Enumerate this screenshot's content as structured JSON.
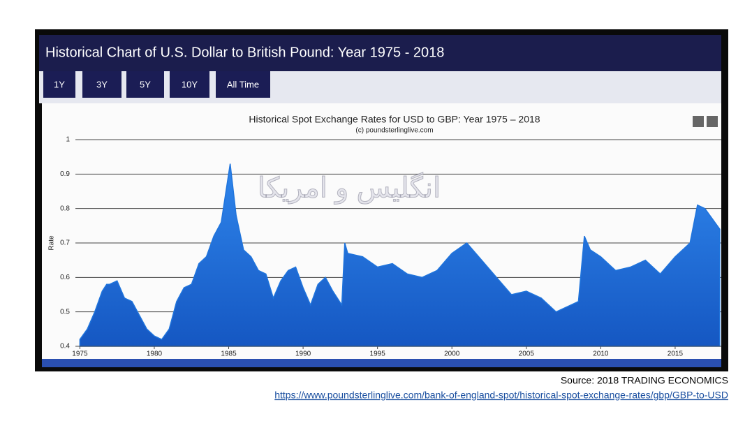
{
  "header": {
    "title": "Historical Chart of U.S. Dollar to British Pound: Year 1975 - 2018"
  },
  "buttons": [
    "1Y",
    "3Y",
    "5Y",
    "10Y",
    "All Time"
  ],
  "chart_data": {
    "type": "area",
    "title": "Historical Spot Exchange Rates for USD to GBP: Year 1975 – 2018",
    "subtitle": "(c) poundsterlinglive.com",
    "ylabel": "Rate",
    "annotation": "انگلیس و امریکا",
    "color": "#1f74dc",
    "grid": true,
    "xlim": [
      1974.7,
      2018.1
    ],
    "xticks": [
      1975,
      1980,
      1985,
      1990,
      1995,
      2000,
      2005,
      2010,
      2015
    ],
    "ylim": [
      0.4,
      1
    ],
    "yticks": [
      0.4,
      0.5,
      0.6,
      0.7,
      0.8,
      0.9,
      1
    ],
    "x": [
      1975.0,
      1975.5,
      1976.0,
      1976.5,
      1976.8,
      1977.0,
      1977.5,
      1978.0,
      1978.5,
      1979.0,
      1979.5,
      1980.0,
      1980.5,
      1981.0,
      1981.5,
      1982.0,
      1982.5,
      1983.0,
      1983.5,
      1984.0,
      1984.5,
      1985.1,
      1985.5,
      1986.0,
      1986.5,
      1987.0,
      1987.5,
      1988.0,
      1988.5,
      1989.0,
      1989.5,
      1990.0,
      1990.5,
      1991.0,
      1991.5,
      1992.0,
      1992.6,
      1992.8,
      1993.0,
      1994.0,
      1995.0,
      1996.0,
      1997.0,
      1998.0,
      1999.0,
      2000.0,
      2001.0,
      2002.0,
      2003.0,
      2004.0,
      2005.0,
      2006.0,
      2007.0,
      2008.0,
      2008.5,
      2008.9,
      2009.3,
      2010.0,
      2011.0,
      2012.0,
      2013.0,
      2014.0,
      2015.0,
      2016.0,
      2016.5,
      2017.0,
      2017.5,
      2018.0
    ],
    "values": [
      0.42,
      0.45,
      0.5,
      0.56,
      0.58,
      0.58,
      0.59,
      0.54,
      0.53,
      0.49,
      0.45,
      0.43,
      0.42,
      0.45,
      0.53,
      0.57,
      0.58,
      0.64,
      0.66,
      0.72,
      0.76,
      0.93,
      0.78,
      0.68,
      0.66,
      0.62,
      0.61,
      0.54,
      0.59,
      0.62,
      0.63,
      0.57,
      0.52,
      0.58,
      0.6,
      0.56,
      0.52,
      0.7,
      0.67,
      0.66,
      0.63,
      0.64,
      0.61,
      0.6,
      0.62,
      0.67,
      0.7,
      0.65,
      0.6,
      0.55,
      0.56,
      0.54,
      0.5,
      0.52,
      0.53,
      0.72,
      0.68,
      0.66,
      0.62,
      0.63,
      0.65,
      0.61,
      0.66,
      0.7,
      0.81,
      0.8,
      0.77,
      0.74
    ]
  },
  "source": "Source: 2018 TRADING ECONOMICS",
  "url": "https://www.poundsterlinglive.com/bank-of-england-spot/historical-spot-exchange-rates/gbp/GBP-to-USD"
}
